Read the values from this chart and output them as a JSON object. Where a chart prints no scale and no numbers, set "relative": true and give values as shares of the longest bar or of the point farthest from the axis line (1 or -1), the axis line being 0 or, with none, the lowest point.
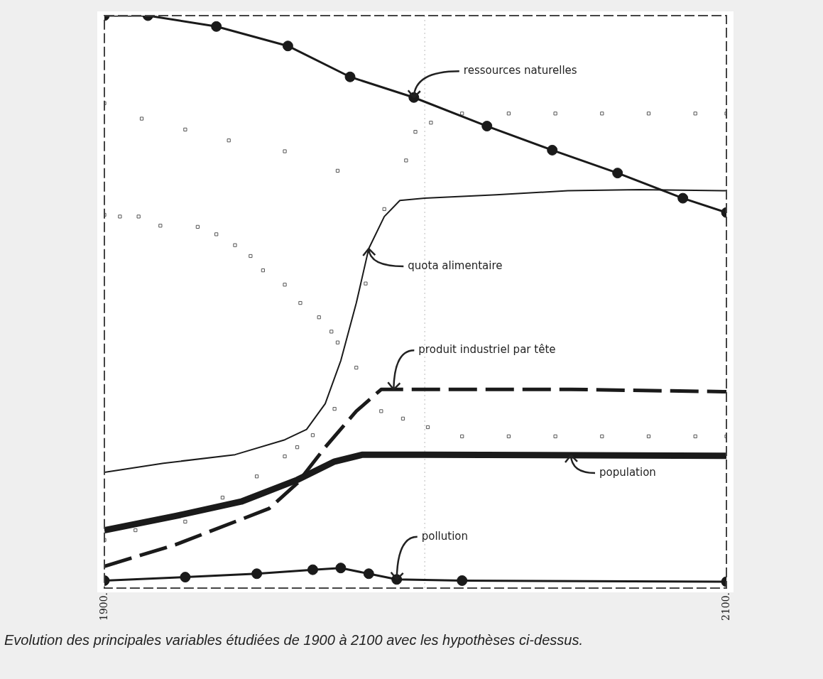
{
  "chart_data": {
    "type": "line",
    "relative": true,
    "grid": false,
    "legend": false,
    "tick_labels": "x",
    "xlim": [
      1900,
      2100
    ],
    "xticks": [
      {
        "value": 1900,
        "label": "1900."
      },
      {
        "value": 2100,
        "label": "2100."
      }
    ],
    "series": [
      {
        "type": "line",
        "color": "#1a1a1a",
        "marker": "circle",
        "line_style": "solid",
        "x": [
          1900,
          1914,
          1936,
          1959,
          1979,
          1999.5,
          2023,
          2044,
          2065,
          2086,
          2100
        ],
        "values": [
          1.0,
          1.0,
          0.981,
          0.947,
          0.893,
          0.857,
          0.807,
          0.765,
          0.725,
          0.681,
          0.656
        ]
      },
      {
        "type": "line",
        "color": "#1a1a1a",
        "marker": "none",
        "line_style": "solid",
        "x": [
          1900,
          1919,
          1942,
          1958,
          1965,
          1971,
          1976,
          1981,
          1985,
          1990,
          1995,
          2003,
          2026,
          2049,
          2072,
          2100
        ],
        "values": [
          0.202,
          0.218,
          0.233,
          0.259,
          0.277,
          0.322,
          0.397,
          0.498,
          0.593,
          0.649,
          0.677,
          0.681,
          0.687,
          0.694,
          0.696,
          0.694
        ]
      },
      {
        "type": "line",
        "color": "#1a1a1a",
        "marker": "none",
        "line_style": "dashed",
        "x": [
          1900,
          1923,
          1944,
          1953,
          1962,
          1971,
          1981,
          1989,
          1993,
          2050,
          2100
        ],
        "values": [
          0.038,
          0.076,
          0.12,
          0.139,
          0.183,
          0.246,
          0.309,
          0.347,
          0.347,
          0.347,
          0.343
        ]
      },
      {
        "type": "line",
        "color": "#1a1a1a",
        "marker": "none",
        "line_style": "solid",
        "x": [
          1900,
          1923,
          1944,
          1962,
          1974,
          1983,
          2003,
          2100
        ],
        "values": [
          0.101,
          0.126,
          0.151,
          0.189,
          0.221,
          0.233,
          0.233,
          0.231
        ]
      },
      {
        "type": "line",
        "color": "#1a1a1a",
        "marker": "circle",
        "line_style": "solid",
        "x": [
          1900,
          1926,
          1949,
          1967,
          1976,
          1985,
          1994,
          2015,
          2100
        ],
        "values": [
          0.013,
          0.019,
          0.025,
          0.032,
          0.035,
          0.025,
          0.015,
          0.013,
          0.011
        ]
      },
      {
        "type": "scatter",
        "color": "#555555",
        "marker": "square",
        "x": [
          1900,
          1912,
          1926,
          1940,
          1958,
          1975
        ],
        "values": [
          0.847,
          0.82,
          0.801,
          0.782,
          0.763,
          0.729
        ]
      },
      {
        "type": "scatter",
        "color": "#555555",
        "marker": "square",
        "x": [
          1900,
          1905,
          1911,
          1918,
          1930,
          1936,
          1942,
          1947,
          1951,
          1958,
          1963,
          1969,
          1973,
          1975,
          1981,
          1989,
          1996,
          2004,
          2015,
          2030,
          2045,
          2060,
          2075,
          2090,
          2100
        ],
        "values": [
          0.652,
          0.649,
          0.649,
          0.633,
          0.631,
          0.618,
          0.599,
          0.58,
          0.555,
          0.53,
          0.498,
          0.473,
          0.448,
          0.429,
          0.385,
          0.309,
          0.296,
          0.281,
          0.265,
          0.265,
          0.265,
          0.265,
          0.265,
          0.265,
          0.265
        ]
      },
      {
        "type": "scatter",
        "color": "#555555",
        "marker": "square",
        "x": [
          1900,
          1910,
          1926,
          1938,
          1949,
          1958,
          1962,
          1967,
          1974,
          1984,
          1990,
          1997,
          2000,
          2005,
          2015,
          2030,
          2045,
          2060,
          2075,
          2090,
          2100
        ],
        "values": [
          0.084,
          0.101,
          0.116,
          0.158,
          0.195,
          0.23,
          0.246,
          0.267,
          0.313,
          0.532,
          0.662,
          0.747,
          0.797,
          0.813,
          0.829,
          0.829,
          0.829,
          0.829,
          0.829,
          0.829,
          0.829
        ]
      }
    ],
    "ref_lines": [
      {
        "axis": "x",
        "value": 2003,
        "color": "#bbbbbb",
        "line_style": "dotted"
      }
    ],
    "annotations": [
      {
        "text": "ressources naturelles",
        "x": 1999.5,
        "y": 0.857
      },
      {
        "text": "quota alimentaire",
        "x": 1985,
        "y": 0.593
      },
      {
        "text": "produit industriel par tête",
        "x": 1993,
        "y": 0.347
      },
      {
        "text": "population",
        "x": 2050,
        "y": 0.232
      },
      {
        "text": "pollution",
        "x": 1994,
        "y": 0.015
      },
      "Evolution des principales variables étudiées de 1900 à 2100 avec les hypothèses ci-dessus."
    ]
  }
}
